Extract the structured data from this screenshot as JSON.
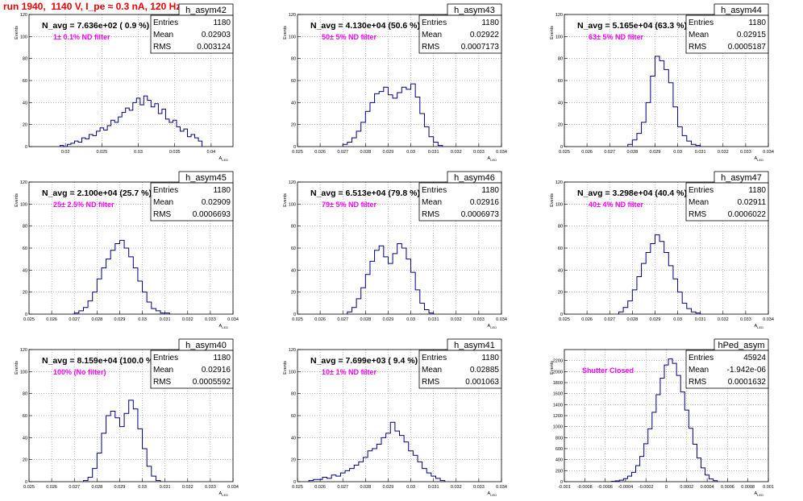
{
  "header": {
    "title": "run 1940,  1140 V, I_pe ≈ 0.3 nA, 120 Hz"
  },
  "colors": {
    "title": "#ee0000",
    "histogram": "#000080",
    "note": "#ff00ff",
    "grid": "#000000"
  },
  "chart_data": [
    {
      "type": "histogram",
      "name": "h_asym42",
      "title": "N_avg = 7.636e+02 ( 0.9 %)",
      "note": "1± 0.1% ND filter",
      "stats": {
        "Entries": "1180",
        "Mean": "0.02903",
        "RMS": "0.003124"
      },
      "xlabel": "A_LED",
      "ylabel": "Events",
      "grid": true,
      "xlim": [
        0.015,
        0.043
      ],
      "ylim": [
        0,
        120
      ],
      "xticks": [
        0.02,
        0.025,
        0.03,
        0.035,
        0.04
      ],
      "xtick_labels": [
        "0.02",
        "0.025",
        "0.03",
        "0.035",
        "0.04"
      ],
      "yticks": [
        0,
        20,
        40,
        60,
        80,
        100,
        120
      ],
      "ytick_labels": [
        "0",
        "20",
        "40",
        "60",
        "80",
        "100",
        "120"
      ],
      "x": [
        0.0195,
        0.02,
        0.0205,
        0.021,
        0.0215,
        0.022,
        0.0225,
        0.023,
        0.0235,
        0.024,
        0.0245,
        0.025,
        0.0255,
        0.026,
        0.0265,
        0.027,
        0.0275,
        0.028,
        0.0285,
        0.029,
        0.0295,
        0.03,
        0.0305,
        0.031,
        0.0315,
        0.032,
        0.0325,
        0.033,
        0.0335,
        0.034,
        0.0345,
        0.035,
        0.0355,
        0.036,
        0.0365,
        0.037,
        0.0375,
        0.038,
        0.0385
      ],
      "values": [
        1,
        0,
        2,
        3,
        5,
        4,
        8,
        7,
        11,
        10,
        14,
        17,
        15,
        19,
        24,
        22,
        27,
        31,
        35,
        33,
        40,
        44,
        38,
        46,
        42,
        36,
        39,
        30,
        34,
        25,
        22,
        24,
        18,
        14,
        16,
        9,
        11,
        8,
        5
      ]
    },
    {
      "type": "histogram",
      "name": "h_asym43",
      "title": "N_avg = 4.130e+04 (50.6 %)",
      "note": "50± 5% ND filter",
      "stats": {
        "Entries": "1180",
        "Mean": "0.02922",
        "RMS": "0.0007173"
      },
      "xlabel": "A_LED",
      "ylabel": "Events",
      "grid": true,
      "xlim": [
        0.025,
        0.034
      ],
      "ylim": [
        0,
        120
      ],
      "xticks": [
        0.025,
        0.026,
        0.027,
        0.028,
        0.029,
        0.03,
        0.031,
        0.032,
        0.033,
        0.034
      ],
      "xtick_labels": [
        "0.025",
        "0.026",
        "0.027",
        "0.028",
        "0.029",
        "0.03",
        "0.031",
        "0.032",
        "0.033",
        "0.034"
      ],
      "yticks": [
        0,
        20,
        40,
        60,
        80,
        100,
        120
      ],
      "ytick_labels": [
        "0",
        "20",
        "40",
        "60",
        "80",
        "100",
        "120"
      ],
      "x": [
        0.0271,
        0.0273,
        0.0275,
        0.0277,
        0.0279,
        0.0281,
        0.0283,
        0.0285,
        0.0287,
        0.0289,
        0.0291,
        0.0293,
        0.0295,
        0.0297,
        0.0299,
        0.0301,
        0.0303,
        0.0305,
        0.0307,
        0.0309,
        0.0311,
        0.0313
      ],
      "values": [
        2,
        4,
        8,
        14,
        22,
        32,
        40,
        48,
        50,
        54,
        47,
        44,
        49,
        54,
        52,
        57,
        45,
        30,
        18,
        9,
        4,
        1
      ]
    },
    {
      "type": "histogram",
      "name": "h_asym44",
      "title": "N_avg = 5.165e+04 (63.3 %)",
      "note": "63± 5% ND filter",
      "stats": {
        "Entries": "1180",
        "Mean": "0.02915",
        "RMS": "0.0005187"
      },
      "xlabel": "A_LED",
      "ylabel": "Events",
      "grid": true,
      "xlim": [
        0.025,
        0.034
      ],
      "ylim": [
        0,
        120
      ],
      "xticks": [
        0.025,
        0.026,
        0.027,
        0.028,
        0.029,
        0.03,
        0.031,
        0.032,
        0.033,
        0.034
      ],
      "xtick_labels": [
        "0.025",
        "0.026",
        "0.027",
        "0.028",
        "0.029",
        "0.03",
        "0.031",
        "0.032",
        "0.033",
        "0.034"
      ],
      "yticks": [
        0,
        20,
        40,
        60,
        80,
        100,
        120
      ],
      "ytick_labels": [
        "0",
        "20",
        "40",
        "60",
        "80",
        "100",
        "120"
      ],
      "x": [
        0.0279,
        0.0281,
        0.0283,
        0.0285,
        0.0287,
        0.0289,
        0.0291,
        0.0293,
        0.0295,
        0.0297,
        0.0299,
        0.0301,
        0.0303,
        0.0305,
        0.0307,
        0.0309
      ],
      "values": [
        2,
        6,
        12,
        22,
        40,
        64,
        82,
        78,
        70,
        58,
        36,
        18,
        10,
        5,
        2,
        1
      ]
    },
    {
      "type": "histogram",
      "name": "h_asym45",
      "title": "N_avg = 2.100e+04 (25.7 %)",
      "note": "25± 2.5% ND filter",
      "stats": {
        "Entries": "1180",
        "Mean": "0.02909",
        "RMS": "0.0006693"
      },
      "xlabel": "A_LED",
      "ylabel": "Events",
      "grid": true,
      "xlim": [
        0.025,
        0.034
      ],
      "ylim": [
        0,
        120
      ],
      "xticks": [
        0.025,
        0.026,
        0.027,
        0.028,
        0.029,
        0.03,
        0.031,
        0.032,
        0.033,
        0.034
      ],
      "xtick_labels": [
        "0.025",
        "0.026",
        "0.027",
        "0.028",
        "0.029",
        "0.03",
        "0.031",
        "0.032",
        "0.033",
        "0.034"
      ],
      "yticks": [
        0,
        20,
        40,
        60,
        80,
        100,
        120
      ],
      "ytick_labels": [
        "0",
        "20",
        "40",
        "60",
        "80",
        "100",
        "120"
      ],
      "x": [
        0.0271,
        0.0273,
        0.0275,
        0.0277,
        0.0279,
        0.0281,
        0.0283,
        0.0285,
        0.0287,
        0.0289,
        0.0291,
        0.0293,
        0.0295,
        0.0297,
        0.0299,
        0.0301,
        0.0303,
        0.0305,
        0.0307,
        0.0309,
        0.0311
      ],
      "values": [
        1,
        3,
        6,
        12,
        20,
        32,
        42,
        50,
        58,
        64,
        67,
        60,
        52,
        42,
        30,
        20,
        11,
        5,
        3,
        1,
        1
      ]
    },
    {
      "type": "histogram",
      "name": "h_asym46",
      "title": "N_avg = 6.513e+04 (79.8 %)",
      "note": "79± 5% ND filter",
      "stats": {
        "Entries": "1180",
        "Mean": "0.02916",
        "RMS": "0.0006973"
      },
      "xlabel": "A_LED",
      "ylabel": "Events",
      "grid": true,
      "xlim": [
        0.025,
        0.034
      ],
      "ylim": [
        0,
        120
      ],
      "xticks": [
        0.025,
        0.026,
        0.027,
        0.028,
        0.029,
        0.03,
        0.031,
        0.032,
        0.033,
        0.034
      ],
      "xtick_labels": [
        "0.025",
        "0.026",
        "0.027",
        "0.028",
        "0.029",
        "0.03",
        "0.031",
        "0.032",
        "0.033",
        "0.034"
      ],
      "yticks": [
        0,
        20,
        40,
        60,
        80,
        100,
        120
      ],
      "ytick_labels": [
        "0",
        "20",
        "40",
        "60",
        "80",
        "100",
        "120"
      ],
      "x": [
        0.0273,
        0.0275,
        0.0277,
        0.0279,
        0.0281,
        0.0283,
        0.0285,
        0.0287,
        0.0289,
        0.0291,
        0.0293,
        0.0295,
        0.0297,
        0.0299,
        0.0301,
        0.0303,
        0.0305,
        0.0307,
        0.0309
      ],
      "values": [
        2,
        6,
        14,
        24,
        36,
        48,
        58,
        62,
        52,
        46,
        55,
        64,
        60,
        50,
        38,
        22,
        10,
        4,
        1
      ]
    },
    {
      "type": "histogram",
      "name": "h_asym47",
      "title": "N_avg = 3.298e+04 (40.4 %)",
      "note": "40± 4% ND filter",
      "stats": {
        "Entries": "1180",
        "Mean": "0.02911",
        "RMS": "0.0006022"
      },
      "xlabel": "A_LED",
      "ylabel": "Events",
      "grid": true,
      "xlim": [
        0.025,
        0.034
      ],
      "ylim": [
        0,
        120
      ],
      "xticks": [
        0.025,
        0.026,
        0.027,
        0.028,
        0.029,
        0.03,
        0.031,
        0.032,
        0.033,
        0.034
      ],
      "xtick_labels": [
        "0.025",
        "0.026",
        "0.027",
        "0.028",
        "0.029",
        "0.03",
        "0.031",
        "0.032",
        "0.033",
        "0.034"
      ],
      "yticks": [
        0,
        20,
        40,
        60,
        80,
        100,
        120
      ],
      "ytick_labels": [
        "0",
        "20",
        "40",
        "60",
        "80",
        "100",
        "120"
      ],
      "x": [
        0.0275,
        0.0277,
        0.0279,
        0.0281,
        0.0283,
        0.0285,
        0.0287,
        0.0289,
        0.0291,
        0.0293,
        0.0295,
        0.0297,
        0.0299,
        0.0301,
        0.0303,
        0.0305,
        0.0307,
        0.0309
      ],
      "values": [
        2,
        6,
        12,
        22,
        34,
        46,
        56,
        64,
        72,
        66,
        56,
        44,
        32,
        20,
        10,
        5,
        2,
        1
      ]
    },
    {
      "type": "histogram",
      "name": "h_asym40",
      "title": "N_avg = 8.159e+04 (100.0 %)",
      "note": "100% (No filter)",
      "stats": {
        "Entries": "1180",
        "Mean": "0.02916",
        "RMS": "0.0005592"
      },
      "xlabel": "A_LED",
      "ylabel": "Events",
      "grid": true,
      "xlim": [
        0.025,
        0.034
      ],
      "ylim": [
        0,
        120
      ],
      "xticks": [
        0.025,
        0.026,
        0.027,
        0.028,
        0.029,
        0.03,
        0.031,
        0.032,
        0.033,
        0.034
      ],
      "xtick_labels": [
        "0.025",
        "0.026",
        "0.027",
        "0.028",
        "0.029",
        "0.03",
        "0.031",
        "0.032",
        "0.033",
        "0.034"
      ],
      "yticks": [
        0,
        20,
        40,
        60,
        80,
        100,
        120
      ],
      "ytick_labels": [
        "0",
        "20",
        "40",
        "60",
        "80",
        "100",
        "120"
      ],
      "x": [
        0.0275,
        0.0277,
        0.0279,
        0.0281,
        0.0283,
        0.0285,
        0.0287,
        0.0289,
        0.0291,
        0.0293,
        0.0295,
        0.0297,
        0.0299,
        0.0301,
        0.0303,
        0.0305,
        0.0307
      ],
      "values": [
        1,
        4,
        12,
        26,
        44,
        60,
        64,
        58,
        50,
        62,
        74,
        66,
        48,
        30,
        14,
        5,
        1
      ]
    },
    {
      "type": "histogram",
      "name": "h_asym41",
      "title": "N_avg = 7.699e+03 ( 9.4 %)",
      "note": "10± 1% ND filter",
      "stats": {
        "Entries": "1180",
        "Mean": "0.02885",
        "RMS": "0.001063"
      },
      "xlabel": "A_LED",
      "ylabel": "Events",
      "grid": true,
      "xlim": [
        0.025,
        0.034
      ],
      "ylim": [
        0,
        120
      ],
      "xticks": [
        0.025,
        0.026,
        0.027,
        0.028,
        0.029,
        0.03,
        0.031,
        0.032,
        0.033,
        0.034
      ],
      "xtick_labels": [
        "0.025",
        "0.026",
        "0.027",
        "0.028",
        "0.029",
        "0.03",
        "0.031",
        "0.032",
        "0.033",
        "0.034"
      ],
      "yticks": [
        0,
        20,
        40,
        60,
        80,
        100,
        120
      ],
      "ytick_labels": [
        "0",
        "20",
        "40",
        "60",
        "80",
        "100",
        "120"
      ],
      "x": [
        0.0256,
        0.0258,
        0.026,
        0.0262,
        0.0264,
        0.0266,
        0.0268,
        0.027,
        0.0272,
        0.0274,
        0.0276,
        0.0278,
        0.028,
        0.0282,
        0.0284,
        0.0286,
        0.0288,
        0.029,
        0.0292,
        0.0294,
        0.0296,
        0.0298,
        0.03,
        0.0302,
        0.0304,
        0.0306,
        0.0308,
        0.031,
        0.0312,
        0.0314
      ],
      "values": [
        1,
        2,
        2,
        4,
        3,
        6,
        5,
        8,
        10,
        12,
        15,
        18,
        22,
        28,
        30,
        34,
        40,
        44,
        54,
        46,
        42,
        36,
        28,
        24,
        18,
        12,
        8,
        5,
        3,
        1
      ]
    },
    {
      "type": "histogram",
      "name": "hPed_asym",
      "title": "",
      "note": "Shutter Closed",
      "stats": {
        "Entries": "45924",
        "Mean": "-1.942e-06",
        "RMS": "0.0001632"
      },
      "xlabel": "A_LED",
      "ylabel": "Events",
      "grid": true,
      "xlim": [
        -0.001,
        0.001
      ],
      "ylim": [
        0,
        2400
      ],
      "xticks": [
        -0.001,
        -0.0008,
        -0.0006,
        -0.0004,
        -0.0002,
        0,
        0.0002,
        0.0004,
        0.0006,
        0.0008,
        0.001
      ],
      "xtick_labels": [
        "-0.001",
        "-0.0008",
        "-0.0006",
        "-0.0004",
        "-0.0002",
        "0",
        "0.0002",
        "0.0004",
        "0.0006",
        "0.0008",
        "0.001"
      ],
      "yticks": [
        0,
        200,
        400,
        600,
        800,
        1000,
        1200,
        1400,
        1600,
        1800,
        2000,
        2200
      ],
      "ytick_labels": [
        "0",
        "200",
        "400",
        "600",
        "800",
        "1000",
        "1200",
        "1400",
        "1600",
        "1800",
        "2000",
        "2200"
      ],
      "x": [
        -0.00052,
        -0.00048,
        -0.00044,
        -0.0004,
        -0.00036,
        -0.00032,
        -0.00028,
        -0.00024,
        -0.0002,
        -0.00016,
        -0.00012,
        -8e-05,
        -4e-05,
        0,
        4e-05,
        8e-05,
        0.00012,
        0.00016,
        0.0002,
        0.00024,
        0.00028,
        0.00032,
        0.00036,
        0.0004,
        0.00044,
        0.00048
      ],
      "values": [
        6,
        14,
        28,
        55,
        100,
        170,
        290,
        460,
        690,
        960,
        1260,
        1580,
        1880,
        2120,
        2230,
        2150,
        1930,
        1630,
        1300,
        970,
        680,
        430,
        250,
        120,
        50,
        18
      ]
    }
  ]
}
